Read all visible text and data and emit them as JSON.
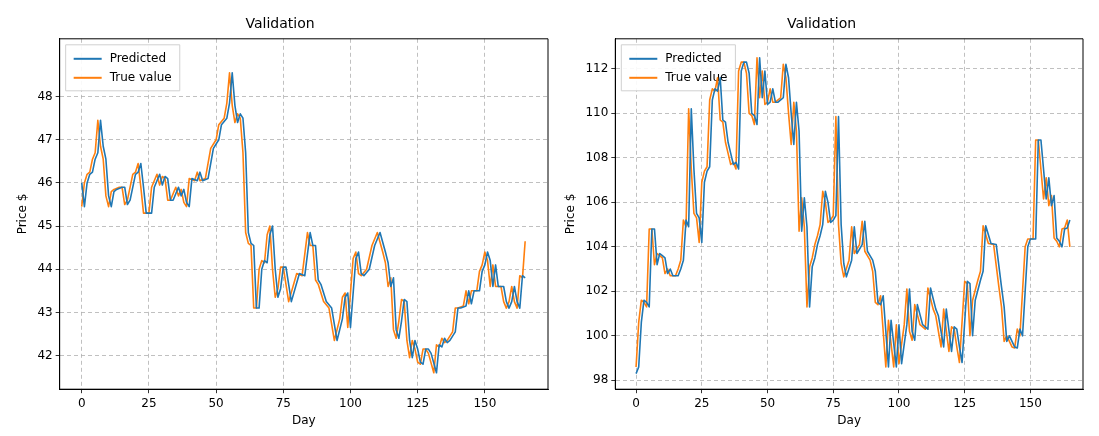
{
  "chart_data": [
    {
      "type": "line",
      "title": "Validation",
      "xlabel": "Day",
      "ylabel": "Price $",
      "xlim": [
        -8.2,
        173.5
      ],
      "ylim": [
        41.22,
        49.34
      ],
      "xticks": [
        0,
        25,
        50,
        75,
        100,
        125,
        150
      ],
      "yticks": [
        42,
        43,
        44,
        45,
        46,
        47,
        48
      ],
      "grid": true,
      "legend": "top left",
      "marker": "none",
      "series": [
        {
          "name": "Predicted",
          "color": "#1f77b4",
          "x": [
            0,
            1,
            2,
            3,
            4,
            5,
            6,
            7,
            8,
            9,
            10,
            11,
            12,
            13,
            15,
            16,
            17,
            18,
            20,
            21,
            22,
            23,
            24,
            26,
            27,
            29,
            30,
            31,
            32,
            33,
            34,
            36,
            37,
            38,
            39,
            40,
            41,
            43,
            44,
            45,
            47,
            49,
            51,
            52,
            54,
            55,
            56,
            57,
            58,
            59,
            60,
            61,
            62,
            63,
            64,
            65,
            66,
            67,
            68,
            69,
            70,
            71,
            72,
            73,
            74,
            75,
            76,
            78,
            81,
            83,
            85,
            86,
            87,
            88,
            89,
            91,
            93,
            95,
            97,
            98,
            99,
            100,
            102,
            103,
            104,
            105,
            107,
            109,
            111,
            113,
            114,
            115,
            116,
            117,
            118,
            119,
            120,
            121,
            122,
            123,
            124,
            125,
            126,
            127,
            128,
            129,
            130,
            132,
            133,
            134,
            135,
            136,
            137,
            139,
            140,
            141,
            143,
            144,
            145,
            146,
            148,
            149,
            150,
            151,
            152,
            153,
            154,
            155,
            157,
            158,
            159,
            160,
            161,
            162,
            163,
            164,
            165
          ],
          "values": [
            46.0,
            45.45,
            46.0,
            46.2,
            46.25,
            46.55,
            46.7,
            47.45,
            46.85,
            46.55,
            45.7,
            45.45,
            45.8,
            45.85,
            45.9,
            45.9,
            45.5,
            45.6,
            46.2,
            46.25,
            46.45,
            45.9,
            45.3,
            45.3,
            45.9,
            46.2,
            45.95,
            46.15,
            46.1,
            45.6,
            45.6,
            45.9,
            45.7,
            45.85,
            45.55,
            45.45,
            46.1,
            46.05,
            46.25,
            46.05,
            46.1,
            46.8,
            47.0,
            47.35,
            47.5,
            47.85,
            48.55,
            47.8,
            47.4,
            47.6,
            47.5,
            46.7,
            44.85,
            44.6,
            44.55,
            43.1,
            43.1,
            44.0,
            44.2,
            44.15,
            44.8,
            45.0,
            44.0,
            43.35,
            43.55,
            44.05,
            44.05,
            43.25,
            43.9,
            43.85,
            44.85,
            44.55,
            44.55,
            43.75,
            43.65,
            43.25,
            43.1,
            42.35,
            42.85,
            43.35,
            43.45,
            42.65,
            44.25,
            44.4,
            43.9,
            43.85,
            44.0,
            44.55,
            44.85,
            44.4,
            44.15,
            43.6,
            43.8,
            42.6,
            42.4,
            42.8,
            43.3,
            43.25,
            42.35,
            41.95,
            42.35,
            42.15,
            41.85,
            41.8,
            42.15,
            42.15,
            42.05,
            41.6,
            42.25,
            42.2,
            42.4,
            42.3,
            42.35,
            42.55,
            43.1,
            43.1,
            43.15,
            43.5,
            43.2,
            43.5,
            43.5,
            43.95,
            44.1,
            44.4,
            44.2,
            43.6,
            44.1,
            43.6,
            43.6,
            43.25,
            43.1,
            43.25,
            43.6,
            43.25,
            43.1,
            43.85,
            43.8
          ]
        },
        {
          "name": "True value",
          "color": "#ff7f0e",
          "x": [
            0,
            1,
            2,
            3,
            4,
            5,
            6,
            7,
            8,
            9,
            10,
            11,
            12,
            14,
            15,
            16,
            17,
            19,
            20,
            21,
            22,
            23,
            25,
            26,
            28,
            29,
            30,
            31,
            32,
            33,
            35,
            36,
            37,
            38,
            39,
            40,
            42,
            43,
            44,
            46,
            48,
            50,
            51,
            53,
            54,
            55,
            56,
            57,
            58,
            59,
            60,
            61,
            62,
            63,
            64,
            65,
            66,
            67,
            68,
            69,
            70,
            71,
            72,
            73,
            74,
            75,
            77,
            80,
            82,
            84,
            85,
            86,
            87,
            88,
            90,
            92,
            94,
            96,
            97,
            98,
            99,
            101,
            102,
            103,
            104,
            106,
            108,
            110,
            112,
            113,
            114,
            115,
            116,
            117,
            118,
            119,
            120,
            121,
            122,
            123,
            124,
            125,
            126,
            127,
            128,
            129,
            131,
            132,
            133,
            134,
            135,
            136,
            138,
            139,
            140,
            142,
            143,
            144,
            145,
            147,
            148,
            149,
            150,
            151,
            152,
            153,
            154,
            156,
            157,
            158,
            159,
            160,
            161,
            162,
            163,
            164,
            165
          ],
          "values": [
            45.45,
            46.0,
            46.2,
            46.25,
            46.55,
            46.7,
            47.45,
            46.85,
            46.55,
            45.7,
            45.45,
            45.8,
            45.85,
            45.9,
            45.9,
            45.5,
            45.6,
            46.2,
            46.25,
            46.45,
            45.9,
            45.3,
            45.3,
            45.9,
            46.2,
            45.95,
            46.15,
            46.1,
            45.6,
            45.6,
            45.9,
            45.7,
            45.85,
            45.55,
            45.45,
            46.1,
            46.05,
            46.25,
            46.05,
            46.1,
            46.8,
            47.0,
            47.35,
            47.5,
            47.85,
            48.55,
            47.8,
            47.4,
            47.6,
            47.5,
            46.7,
            44.85,
            44.6,
            44.55,
            43.1,
            43.1,
            44.0,
            44.2,
            44.15,
            44.8,
            45.0,
            44.0,
            43.35,
            43.55,
            44.05,
            44.05,
            43.25,
            43.9,
            43.85,
            44.85,
            44.55,
            44.55,
            43.75,
            43.65,
            43.25,
            43.1,
            42.35,
            42.85,
            43.35,
            43.45,
            42.65,
            44.25,
            44.4,
            43.9,
            43.85,
            44.0,
            44.55,
            44.85,
            44.4,
            44.15,
            43.6,
            43.8,
            42.6,
            42.4,
            42.8,
            43.3,
            43.25,
            42.35,
            41.95,
            42.35,
            42.15,
            41.85,
            41.8,
            42.15,
            42.15,
            42.05,
            41.6,
            42.25,
            42.2,
            42.4,
            42.3,
            42.35,
            42.55,
            43.1,
            43.1,
            43.15,
            43.5,
            43.2,
            43.5,
            43.5,
            43.95,
            44.1,
            44.4,
            44.2,
            43.6,
            44.1,
            43.6,
            43.6,
            43.25,
            43.1,
            43.25,
            43.6,
            43.25,
            43.1,
            43.85,
            43.8,
            44.65
          ]
        }
      ]
    },
    {
      "type": "line",
      "title": "Validation",
      "xlabel": "Day",
      "ylabel": "Price $",
      "xlim": [
        -7.9,
        170
      ],
      "ylim": [
        97.6,
        113.35
      ],
      "xticks": [
        0,
        25,
        50,
        75,
        100,
        125,
        150
      ],
      "yticks": [
        98,
        100,
        102,
        104,
        106,
        108,
        110,
        112
      ],
      "grid": true,
      "legend": "top left",
      "marker": "none",
      "series": [
        {
          "name": "Predicted",
          "color": "#1f77b4",
          "x": [
            0,
            1,
            2,
            3,
            4,
            5,
            6,
            7,
            8,
            9,
            10,
            11,
            12,
            13,
            14,
            16,
            17,
            18,
            19,
            20,
            21,
            22,
            23,
            24,
            25,
            26,
            27,
            28,
            29,
            30,
            31,
            32,
            33,
            34,
            35,
            36,
            37,
            38,
            39,
            40,
            41,
            42,
            43,
            44,
            45,
            46,
            47,
            48,
            49,
            50,
            51,
            52,
            53,
            54,
            55,
            56,
            57,
            58,
            59,
            60,
            61,
            62,
            63,
            64,
            65,
            66,
            67,
            68,
            69,
            70,
            71,
            72,
            73,
            74,
            75,
            76,
            77,
            78,
            79,
            80,
            82,
            83,
            84,
            86,
            87,
            88,
            90,
            91,
            92,
            93,
            94,
            96,
            97,
            99,
            100,
            101,
            103,
            104,
            105,
            106,
            107,
            109,
            110,
            111,
            112,
            114,
            115,
            116,
            117,
            118,
            120,
            121,
            122,
            123,
            124,
            126,
            127,
            128,
            129,
            131,
            132,
            133,
            135,
            137,
            139,
            140,
            141,
            142,
            144,
            145,
            146,
            147,
            148,
            149,
            150,
            152,
            153,
            154,
            156,
            157,
            158,
            159,
            160,
            161,
            162,
            163,
            164,
            165
          ],
          "values": [
            98.3,
            98.6,
            100.6,
            101.6,
            101.5,
            101.3,
            104.8,
            104.8,
            103.2,
            103.7,
            103.6,
            103.5,
            102.8,
            103.0,
            102.7,
            102.7,
            103.0,
            103.4,
            105.2,
            104.9,
            110.2,
            107.5,
            105.5,
            105.3,
            104.2,
            106.9,
            107.4,
            107.6,
            110.6,
            111.1,
            111.0,
            111.6,
            109.7,
            109.6,
            108.7,
            108.2,
            107.7,
            107.8,
            107.5,
            111.9,
            112.3,
            112.3,
            111.8,
            110.0,
            109.9,
            109.5,
            112.5,
            110.7,
            111.9,
            110.4,
            110.5,
            111.1,
            110.5,
            110.5,
            110.6,
            110.7,
            112.2,
            111.6,
            110.0,
            108.6,
            110.5,
            109.2,
            104.7,
            106.2,
            104.9,
            101.3,
            103.1,
            103.5,
            104.1,
            104.5,
            105.0,
            106.5,
            106.0,
            105.1,
            105.2,
            105.4,
            109.85,
            105.0,
            103.25,
            102.65,
            103.4,
            104.9,
            103.7,
            104.1,
            105.15,
            103.8,
            103.4,
            102.9,
            101.5,
            101.4,
            101.8,
            98.6,
            100.7,
            98.6,
            100.5,
            98.75,
            100.5,
            102.1,
            100.2,
            99.8,
            101.4,
            100.5,
            100.4,
            100.3,
            102.15,
            101.2,
            100.9,
            100.2,
            99.5,
            101.2,
            99.3,
            100.4,
            100.3,
            99.5,
            98.8,
            102.45,
            102.35,
            100.0,
            101.6,
            102.5,
            102.9,
            104.95,
            104.15,
            104.1,
            102.2,
            101.3,
            99.75,
            100.0,
            99.5,
            99.45,
            100.3,
            100.0,
            102.0,
            104.0,
            104.35,
            104.35,
            108.8,
            108.8,
            106.15,
            107.1,
            105.85,
            106.3,
            104.4,
            104.25,
            104.0,
            104.8,
            104.85,
            105.2
          ]
        },
        {
          "name": "True value",
          "color": "#ff7f0e",
          "x": [
            0,
            1,
            2,
            3,
            4,
            5,
            6,
            7,
            8,
            9,
            10,
            11,
            12,
            13,
            15,
            16,
            17,
            18,
            19,
            20,
            21,
            22,
            23,
            24,
            25,
            26,
            27,
            28,
            29,
            30,
            31,
            32,
            33,
            34,
            35,
            36,
            37,
            38,
            39,
            40,
            41,
            42,
            43,
            44,
            45,
            46,
            47,
            48,
            49,
            50,
            51,
            52,
            53,
            54,
            55,
            56,
            57,
            58,
            59,
            60,
            61,
            62,
            63,
            64,
            65,
            66,
            67,
            68,
            69,
            70,
            71,
            72,
            73,
            74,
            75,
            76,
            77,
            78,
            79,
            81,
            82,
            83,
            85,
            86,
            87,
            89,
            90,
            91,
            92,
            93,
            95,
            96,
            98,
            99,
            100,
            102,
            103,
            104,
            105,
            106,
            108,
            109,
            110,
            111,
            113,
            114,
            115,
            116,
            117,
            119,
            120,
            121,
            122,
            123,
            125,
            126,
            127,
            128,
            130,
            131,
            132,
            134,
            136,
            138,
            139,
            140,
            141,
            143,
            144,
            145,
            146,
            147,
            148,
            149,
            151,
            152,
            153,
            155,
            156,
            157,
            158,
            159,
            160,
            161,
            162,
            163,
            164,
            165
          ],
          "values": [
            98.6,
            100.6,
            101.6,
            101.5,
            101.3,
            104.8,
            104.8,
            103.2,
            103.7,
            103.6,
            103.5,
            102.8,
            103.0,
            102.7,
            102.7,
            103.0,
            103.4,
            105.2,
            104.9,
            110.2,
            107.5,
            105.5,
            105.3,
            104.2,
            106.9,
            107.4,
            107.6,
            110.6,
            111.1,
            111.0,
            111.6,
            109.7,
            109.6,
            108.7,
            108.2,
            107.7,
            107.8,
            107.5,
            111.9,
            112.3,
            112.3,
            111.8,
            110.0,
            109.9,
            109.5,
            112.5,
            110.7,
            111.9,
            110.4,
            110.5,
            111.1,
            110.5,
            110.5,
            110.6,
            110.7,
            112.2,
            111.6,
            110.0,
            108.6,
            110.5,
            109.2,
            104.7,
            106.2,
            104.9,
            101.3,
            103.1,
            103.5,
            104.1,
            104.5,
            105.0,
            106.5,
            106.0,
            105.1,
            105.2,
            105.4,
            109.85,
            105.0,
            103.25,
            102.65,
            103.4,
            104.9,
            103.7,
            104.1,
            105.15,
            103.8,
            103.4,
            102.9,
            101.5,
            101.4,
            101.8,
            98.6,
            100.7,
            98.6,
            100.5,
            98.75,
            100.5,
            102.1,
            100.2,
            99.8,
            101.4,
            100.5,
            100.4,
            100.3,
            102.15,
            101.2,
            100.9,
            100.2,
            99.5,
            101.2,
            99.3,
            100.4,
            100.3,
            99.5,
            98.8,
            102.45,
            102.35,
            100.0,
            101.6,
            102.5,
            102.9,
            104.95,
            104.15,
            104.1,
            102.2,
            101.3,
            99.75,
            100.0,
            99.5,
            99.45,
            100.3,
            100.0,
            102.0,
            104.0,
            104.35,
            104.35,
            108.8,
            108.8,
            106.15,
            107.1,
            105.85,
            106.3,
            104.4,
            104.25,
            104.0,
            104.8,
            104.85,
            105.2,
            104.0
          ]
        }
      ]
    }
  ]
}
